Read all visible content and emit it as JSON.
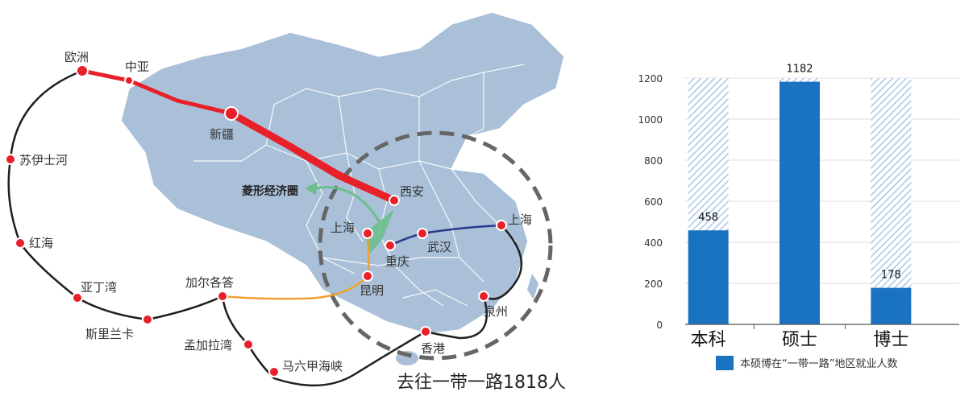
{
  "map": {
    "total_label": "去往一带一路1818人",
    "diamond_label": "菱形经济圈",
    "route_labels": {
      "europe": "欧洲",
      "central_asia": "中亚",
      "suez": "苏伊士河",
      "red_sea": "红海",
      "aden": "亚丁湾",
      "sri_lanka": "斯里兰卡",
      "bengal": "孟加拉湾",
      "malacca": "马六甲海峡"
    },
    "cities": {
      "xinjiang": "新疆",
      "xian": "西安",
      "shanghai_west": "上海",
      "chongqing": "重庆",
      "wuhan": "武汉",
      "shanghai": "上海",
      "kunming": "昆明",
      "kolkata": "加尔各答",
      "quanzhou": "泉州",
      "hongkong": "香港"
    },
    "colors": {
      "land": "#a9c0d8",
      "land_border": "#ffffff",
      "silk_road": "#e8202a",
      "sea_route": "#1f1f1f",
      "yangtze": "#2a3a8a",
      "kunming_route": "#f0a030",
      "diamond": "#6bbf8e",
      "circle": "#666666"
    }
  },
  "chart_data": {
    "type": "bar",
    "categories": [
      "本科",
      "硕士",
      "博士"
    ],
    "series": [
      {
        "name": "本硕博在“一带一路”地区就业人数",
        "values": [
          458,
          1182,
          178
        ]
      }
    ],
    "background_total": 1200,
    "ylim": [
      0,
      1200
    ],
    "yticks": [
      0,
      200,
      400,
      600,
      800,
      1000,
      1200
    ],
    "ytick_labels": [
      "0",
      "200",
      "400",
      "600",
      "800",
      "1000",
      "1200"
    ],
    "legend_position": "bottom",
    "grid": true,
    "colors": {
      "bar": "#1a73c0",
      "hatch": "#a9c7e6",
      "grid": "#dddddd"
    }
  }
}
